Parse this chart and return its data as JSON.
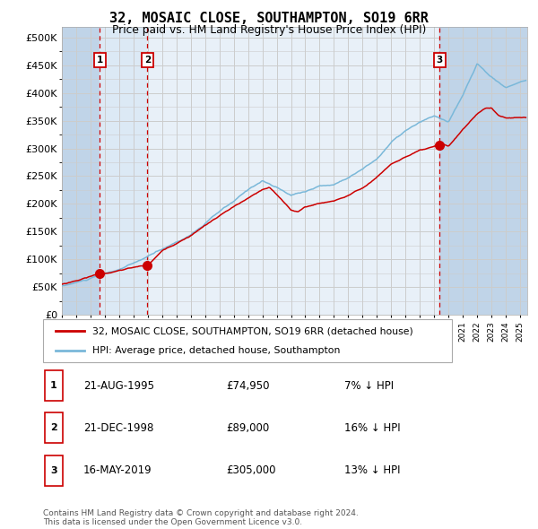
{
  "title": "32, MOSAIC CLOSE, SOUTHAMPTON, SO19 6RR",
  "subtitle": "Price paid vs. HM Land Registry's House Price Index (HPI)",
  "ylabel_ticks": [
    "£0",
    "£50K",
    "£100K",
    "£150K",
    "£200K",
    "£250K",
    "£300K",
    "£350K",
    "£400K",
    "£450K",
    "£500K"
  ],
  "ytick_values": [
    0,
    50000,
    100000,
    150000,
    200000,
    250000,
    300000,
    350000,
    400000,
    450000,
    500000
  ],
  "ylim": [
    0,
    520000
  ],
  "xlim_start": 1993.0,
  "xlim_end": 2025.5,
  "sales": [
    {
      "label": "1",
      "date_num": 1995.64,
      "price": 74950,
      "date_str": "21-AUG-1995",
      "price_str": "£74,950",
      "hpi_pct": "7% ↓ HPI"
    },
    {
      "label": "2",
      "date_num": 1998.97,
      "price": 89000,
      "date_str": "21-DEC-1998",
      "price_str": "£89,000",
      "hpi_pct": "16% ↓ HPI"
    },
    {
      "label": "3",
      "date_num": 2019.38,
      "price": 305000,
      "date_str": "16-MAY-2019",
      "price_str": "£305,000",
      "hpi_pct": "13% ↓ HPI"
    }
  ],
  "hpi_line_color": "#7ab8d9",
  "sale_line_color": "#cc0000",
  "sale_dot_color": "#cc0000",
  "dashed_vline_color": "#cc0000",
  "shade_color": "#dce9f5",
  "hatched_color": "#c0d4e8",
  "grid_color": "#cccccc",
  "bg_color": "#e8f0f8",
  "legend_label_red": "32, MOSAIC CLOSE, SOUTHAMPTON, SO19 6RR (detached house)",
  "legend_label_blue": "HPI: Average price, detached house, Southampton",
  "footnote": "Contains HM Land Registry data © Crown copyright and database right 2024.\nThis data is licensed under the Open Government Licence v3.0.",
  "table_rows": [
    [
      "1",
      "21-AUG-1995",
      "£74,950",
      "7% ↓ HPI"
    ],
    [
      "2",
      "21-DEC-1998",
      "£89,000",
      "16% ↓ HPI"
    ],
    [
      "3",
      "16-MAY-2019",
      "£305,000",
      "13% ↓ HPI"
    ]
  ]
}
